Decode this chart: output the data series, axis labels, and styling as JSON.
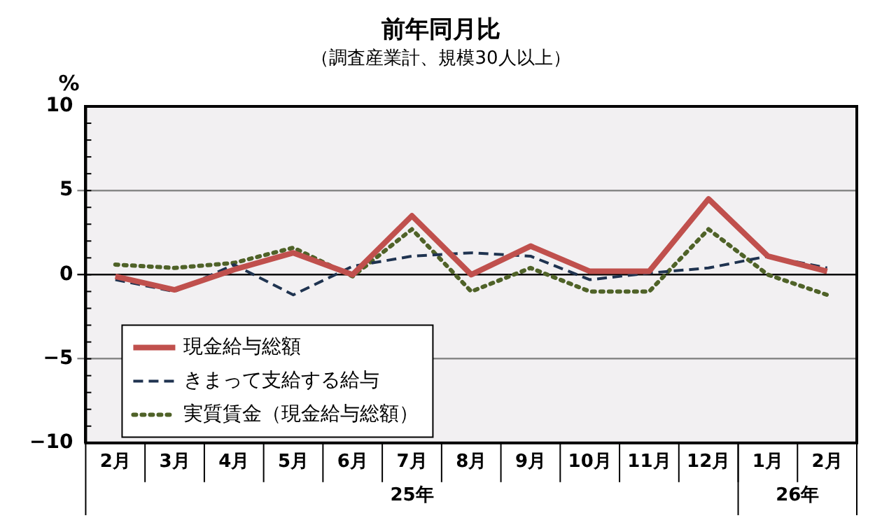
{
  "chart_data": {
    "type": "line",
    "title": "前年同月比",
    "subtitle": "（調査産業計、規模30人以上）",
    "ylabel": "%",
    "categories": [
      "2月",
      "3月",
      "4月",
      "5月",
      "6月",
      "7月",
      "8月",
      "9月",
      "10月",
      "11月",
      "12月",
      "1月",
      "2月"
    ],
    "series": [
      {
        "name": "現金給与総額",
        "color": "#c0504d",
        "line_style": "solid",
        "values": [
          -0.1,
          -0.9,
          0.3,
          1.3,
          0.0,
          3.5,
          0.0,
          1.7,
          0.2,
          0.2,
          4.5,
          1.1,
          0.2
        ]
      },
      {
        "name": "きまって支給する給与",
        "color": "#1f3350",
        "line_style": "dashed",
        "values": [
          -0.3,
          -1.0,
          0.6,
          -1.2,
          0.5,
          1.1,
          1.3,
          1.1,
          -0.3,
          0.1,
          0.4,
          1.1,
          0.4
        ]
      },
      {
        "name": "実質賃金（現金給与総額）",
        "color": "#4f6228",
        "line_style": "dotted",
        "values": [
          0.6,
          0.4,
          0.7,
          1.6,
          -0.1,
          2.7,
          -1.0,
          0.4,
          -1.0,
          -1.0,
          2.7,
          0.0,
          -1.2
        ]
      }
    ],
    "ylim": [
      -10,
      10
    ],
    "yticks": [
      {
        "value": -10,
        "label": "−10"
      },
      {
        "value": -5,
        "label": "−5"
      },
      0,
      5,
      10
    ],
    "grid": "y",
    "legend": "bottom left",
    "marker": "none",
    "annotations": [
      "25年",
      "26年"
    ]
  }
}
